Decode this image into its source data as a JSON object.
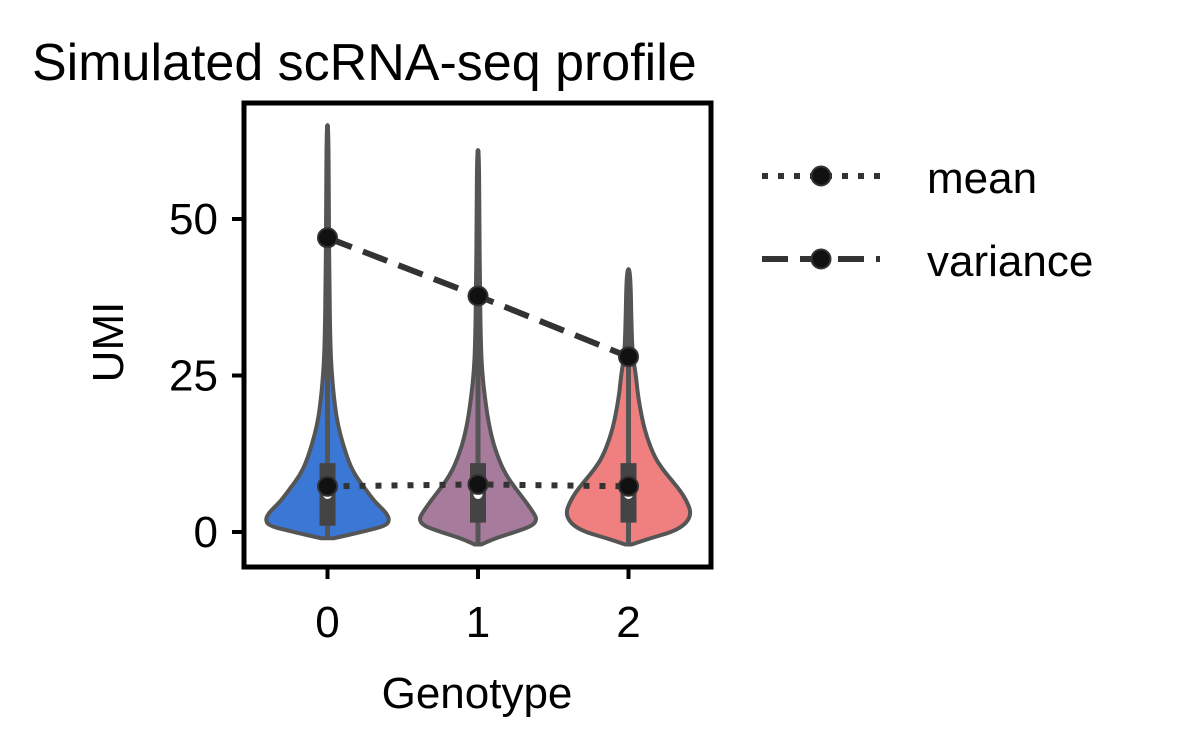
{
  "chart_data": {
    "type": "violin",
    "title": "Simulated scRNA-seq profile",
    "xlabel": "Genotype",
    "ylabel": "UMI",
    "categories": [
      "0",
      "1",
      "2"
    ],
    "category_colors": [
      "#3b78d6",
      "#a67b9b",
      "#f08080"
    ],
    "outline_color": "#555555",
    "ylim": [
      -5,
      67
    ],
    "yticks": [
      0,
      25,
      50
    ],
    "ytick_labels": [
      "0",
      "25",
      "50"
    ],
    "grid": false,
    "legend_position": "outside-right",
    "violins": [
      {
        "category": "0",
        "min": -1,
        "max": 65,
        "q1": 1,
        "median": 6,
        "q3": 11,
        "shape": [
          [
            -1,
            0.1
          ],
          [
            0,
            0.55
          ],
          [
            1,
            0.95
          ],
          [
            2,
            1.0
          ],
          [
            3,
            0.95
          ],
          [
            4,
            0.85
          ],
          [
            5,
            0.75
          ],
          [
            7,
            0.6
          ],
          [
            9,
            0.45
          ],
          [
            11,
            0.35
          ],
          [
            14,
            0.25
          ],
          [
            17,
            0.17
          ],
          [
            20,
            0.12
          ],
          [
            25,
            0.07
          ],
          [
            30,
            0.045
          ],
          [
            40,
            0.03
          ],
          [
            50,
            0.022
          ],
          [
            65,
            0.015
          ]
        ]
      },
      {
        "category": "1",
        "min": -2,
        "max": 61,
        "q1": 1.5,
        "median": 6,
        "q3": 11,
        "shape": [
          [
            -2,
            0.05
          ],
          [
            -1,
            0.28
          ],
          [
            0,
            0.6
          ],
          [
            1,
            0.88
          ],
          [
            2,
            0.95
          ],
          [
            3,
            0.9
          ],
          [
            5,
            0.76
          ],
          [
            7,
            0.6
          ],
          [
            9,
            0.46
          ],
          [
            11,
            0.36
          ],
          [
            14,
            0.25
          ],
          [
            17,
            0.18
          ],
          [
            20,
            0.13
          ],
          [
            25,
            0.07
          ],
          [
            30,
            0.045
          ],
          [
            40,
            0.03
          ],
          [
            50,
            0.022
          ],
          [
            61,
            0.015
          ]
        ]
      },
      {
        "category": "2",
        "min": -2,
        "max": 42,
        "q1": 1.5,
        "median": 6,
        "q3": 11,
        "shape": [
          [
            -2,
            0.05
          ],
          [
            -1,
            0.35
          ],
          [
            0,
            0.7
          ],
          [
            1,
            0.88
          ],
          [
            2,
            0.97
          ],
          [
            3,
            1.0
          ],
          [
            4,
            0.98
          ],
          [
            6,
            0.88
          ],
          [
            8,
            0.72
          ],
          [
            10,
            0.55
          ],
          [
            12,
            0.42
          ],
          [
            15,
            0.3
          ],
          [
            18,
            0.22
          ],
          [
            22,
            0.15
          ],
          [
            25,
            0.12
          ],
          [
            28,
            0.07
          ],
          [
            32,
            0.05
          ],
          [
            42,
            0.03
          ]
        ]
      }
    ],
    "series": [
      {
        "name": "mean",
        "style": "dotted",
        "x": [
          "0",
          "1",
          "2"
        ],
        "values": [
          7.3,
          7.6,
          7.3
        ]
      },
      {
        "name": "variance",
        "style": "dashed",
        "x": [
          "0",
          "1",
          "2"
        ],
        "values": [
          47,
          37.7,
          28
        ]
      }
    ],
    "line_color": "#333333",
    "marker_color": "#111111"
  }
}
